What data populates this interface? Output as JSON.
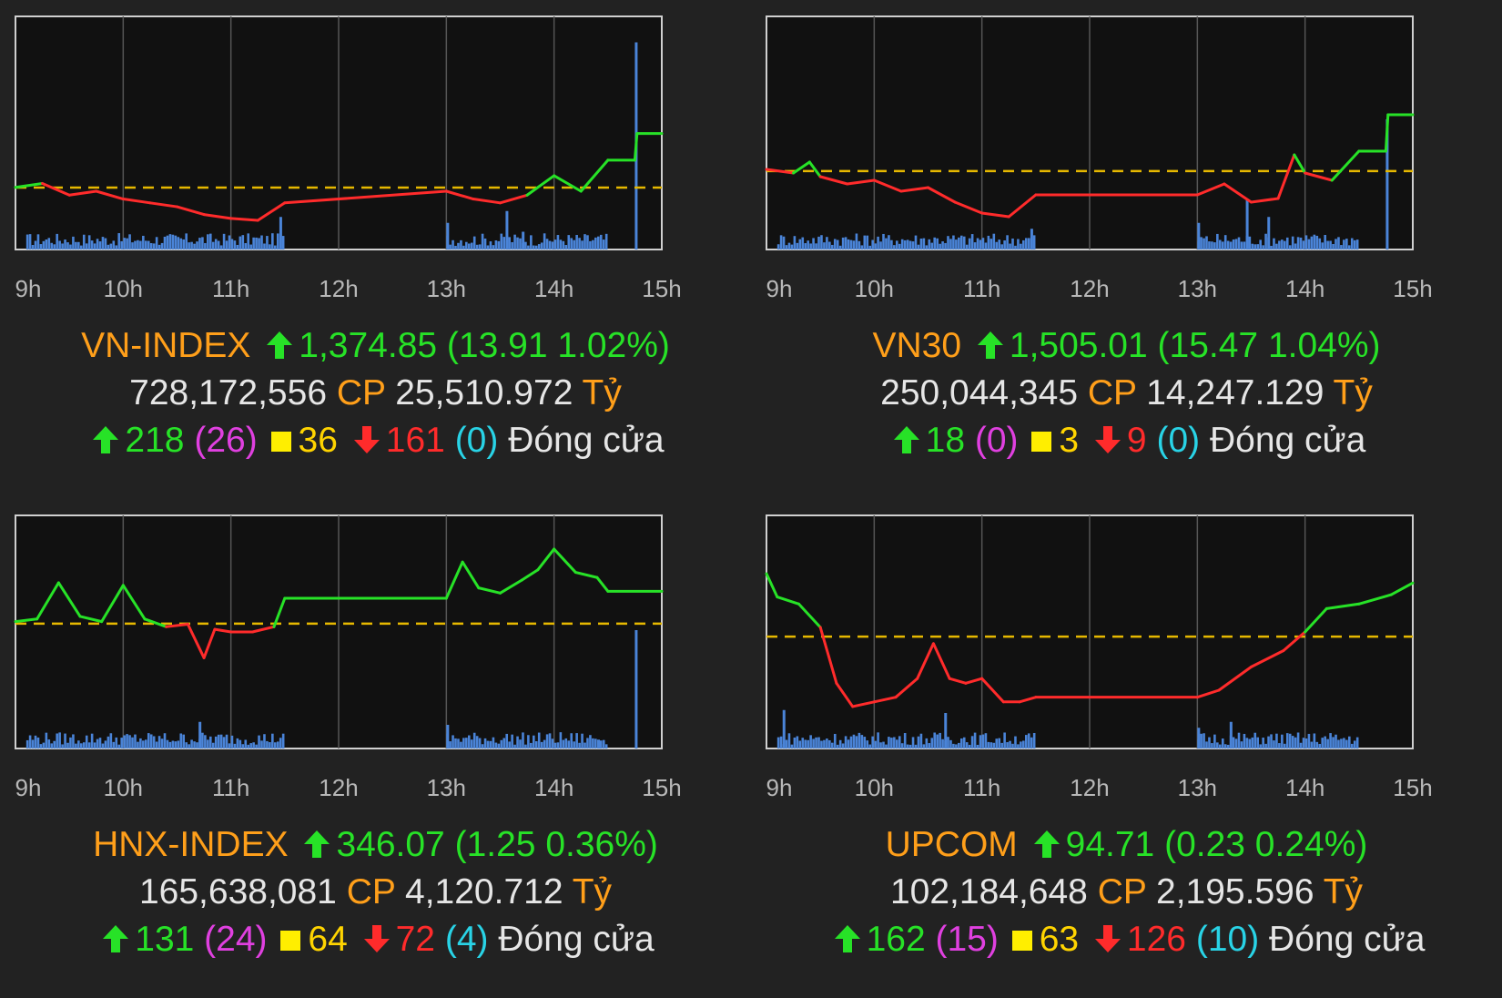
{
  "colors": {
    "background": "#222222",
    "up": "#27e227",
    "down": "#ff2b2b",
    "reference": "#e6b800",
    "volume": "#4a84d8",
    "name": "#ff9f1a",
    "ceiling_count": "#e040e0",
    "unchanged": "#ffd400",
    "floor_count": "#29d3e6"
  },
  "panels": [
    {
      "name": "VN-INDEX",
      "value": "1,374.85",
      "change": "(13.91 1.02%)",
      "volume": "728,172,556",
      "volume_unit": "CP",
      "turnover": "25,510.972",
      "turnover_unit": "Tỷ",
      "advances": "218",
      "ceiling": "(26)",
      "unchanged": "36",
      "declines": "161",
      "floor": "(0)",
      "status": "Đóng cửa"
    },
    {
      "name": "VN30",
      "value": "1,505.01",
      "change": "(15.47 1.04%)",
      "volume": "250,044,345",
      "volume_unit": "CP",
      "turnover": "14,247.129",
      "turnover_unit": "Tỷ",
      "advances": "18",
      "ceiling": "(0)",
      "unchanged": "3",
      "declines": "9",
      "floor": "(0)",
      "status": "Đóng cửa"
    },
    {
      "name": "HNX-INDEX",
      "value": "346.07",
      "change": "(1.25 0.36%)",
      "volume": "165,638,081",
      "volume_unit": "CP",
      "turnover": "4,120.712",
      "turnover_unit": "Tỷ",
      "advances": "131",
      "ceiling": "(24)",
      "unchanged": "64",
      "declines": "72",
      "floor": "(4)",
      "status": "Đóng cửa"
    },
    {
      "name": "UPCOM",
      "value": "94.71",
      "change": "(0.23 0.24%)",
      "volume": "102,184,648",
      "volume_unit": "CP",
      "turnover": "2,195.596",
      "turnover_unit": "Tỷ",
      "advances": "162",
      "ceiling": "(15)",
      "unchanged": "63",
      "declines": "126",
      "floor": "(10)",
      "status": "Đóng cửa"
    }
  ],
  "chart_data": [
    {
      "type": "line",
      "title": "VN-INDEX",
      "x_ticks": [
        "9h",
        "10h",
        "11h",
        "12h",
        "13h",
        "14h",
        "15h"
      ],
      "reference": 1360.94,
      "ylim": [
        1345,
        1405
      ],
      "x": [
        9.0,
        9.25,
        9.5,
        9.75,
        10.0,
        10.25,
        10.5,
        10.75,
        11.0,
        11.25,
        11.5,
        13.0,
        13.25,
        13.5,
        13.75,
        14.0,
        14.25,
        14.5,
        14.75,
        14.77,
        15.0
      ],
      "y": [
        1361.0,
        1362.0,
        1359.0,
        1360.0,
        1358.0,
        1357.0,
        1356.0,
        1354.0,
        1353.0,
        1352.5,
        1357.0,
        1360.0,
        1358.0,
        1357.0,
        1359.0,
        1364.0,
        1360.0,
        1368.0,
        1368.0,
        1374.85,
        1374.85
      ],
      "volume_spikes": [
        [
          11.45,
          0.55
        ],
        [
          13.0,
          0.45
        ],
        [
          13.55,
          0.65
        ],
        [
          13.7,
          0.3
        ],
        [
          14.75,
          3.5
        ]
      ]
    },
    {
      "type": "line",
      "title": "VN30",
      "x_ticks": [
        "9h",
        "10h",
        "11h",
        "12h",
        "13h",
        "14h",
        "15h"
      ],
      "reference": 1489.54,
      "ylim": [
        1468,
        1532
      ],
      "x": [
        9.0,
        9.25,
        9.4,
        9.5,
        9.75,
        10.0,
        10.25,
        10.5,
        10.75,
        11.0,
        11.25,
        11.5,
        13.0,
        13.25,
        13.5,
        13.75,
        13.9,
        14.0,
        14.25,
        14.5,
        14.75,
        14.77,
        15.0
      ],
      "y": [
        1490.0,
        1489.0,
        1492.0,
        1488.0,
        1486.0,
        1487.0,
        1484.0,
        1485.0,
        1481.0,
        1478.0,
        1477.0,
        1483.0,
        1483.0,
        1486.0,
        1481.0,
        1482.0,
        1494.0,
        1489.0,
        1487.0,
        1495.0,
        1495.0,
        1505.01,
        1505.01
      ],
      "volume_spikes": [
        [
          11.45,
          0.35
        ],
        [
          13.0,
          0.45
        ],
        [
          13.45,
          0.85
        ],
        [
          13.65,
          0.55
        ],
        [
          14.75,
          2.2
        ]
      ]
    },
    {
      "type": "line",
      "title": "HNX-INDEX",
      "x_ticks": [
        "9h",
        "10h",
        "11h",
        "12h",
        "13h",
        "14h",
        "15h"
      ],
      "reference": 344.82,
      "ylim": [
        340,
        349
      ],
      "x": [
        9.0,
        9.2,
        9.4,
        9.6,
        9.8,
        10.0,
        10.2,
        10.4,
        10.6,
        10.75,
        10.85,
        11.0,
        11.2,
        11.4,
        11.5,
        13.0,
        13.15,
        13.3,
        13.5,
        13.7,
        13.85,
        14.0,
        14.2,
        14.4,
        14.5,
        15.0
      ],
      "y": [
        344.9,
        345.0,
        346.4,
        345.1,
        344.9,
        346.3,
        345.0,
        344.7,
        344.8,
        343.5,
        344.6,
        344.5,
        344.5,
        344.7,
        345.8,
        345.8,
        347.2,
        346.2,
        346.0,
        346.5,
        346.9,
        347.7,
        346.8,
        346.6,
        346.07,
        346.07
      ],
      "volume_spikes": [
        [
          10.7,
          0.45
        ],
        [
          13.0,
          0.4
        ],
        [
          14.4,
          0.15
        ],
        [
          14.75,
          2.0
        ]
      ]
    },
    {
      "type": "line",
      "title": "UPCOM",
      "x_ticks": [
        "9h",
        "10h",
        "11h",
        "12h",
        "13h",
        "14h",
        "15h"
      ],
      "reference": 94.48,
      "ylim": [
        94.0,
        95.0
      ],
      "x": [
        9.0,
        9.1,
        9.3,
        9.5,
        9.65,
        9.8,
        10.0,
        10.2,
        10.4,
        10.55,
        10.7,
        10.85,
        11.0,
        11.2,
        11.35,
        11.5,
        13.0,
        13.2,
        13.5,
        13.8,
        14.0,
        14.2,
        14.5,
        14.8,
        15.0
      ],
      "y": [
        94.75,
        94.65,
        94.62,
        94.52,
        94.28,
        94.18,
        94.2,
        94.22,
        94.3,
        94.45,
        94.3,
        94.28,
        94.3,
        94.2,
        94.2,
        94.22,
        94.22,
        94.25,
        94.35,
        94.42,
        94.5,
        94.6,
        94.62,
        94.66,
        94.71
      ],
      "volume_spikes": [
        [
          9.15,
          0.65
        ],
        [
          10.65,
          0.6
        ],
        [
          13.0,
          0.35
        ],
        [
          13.3,
          0.45
        ]
      ]
    }
  ]
}
